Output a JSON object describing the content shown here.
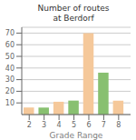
{
  "chart_data": {
    "type": "bar",
    "title": "Number of routes\nat Berdorf",
    "xlabel": "Grade Range",
    "x": [
      2,
      3,
      4,
      5,
      6,
      7,
      8
    ],
    "values": [
      6,
      6,
      11,
      12,
      70,
      36,
      12
    ],
    "colors": [
      "#f5c89a",
      "#88c070",
      "#f5c89a",
      "#88c070",
      "#f5c89a",
      "#88c070",
      "#f5c89a"
    ],
    "xlim": [
      1.5,
      8.8
    ],
    "xticks": [
      2,
      3,
      4,
      5,
      6,
      7,
      8
    ],
    "ylim": [
      0,
      75
    ],
    "yticks": [
      10,
      20,
      30,
      40,
      50,
      60,
      70
    ],
    "grid": true
  }
}
